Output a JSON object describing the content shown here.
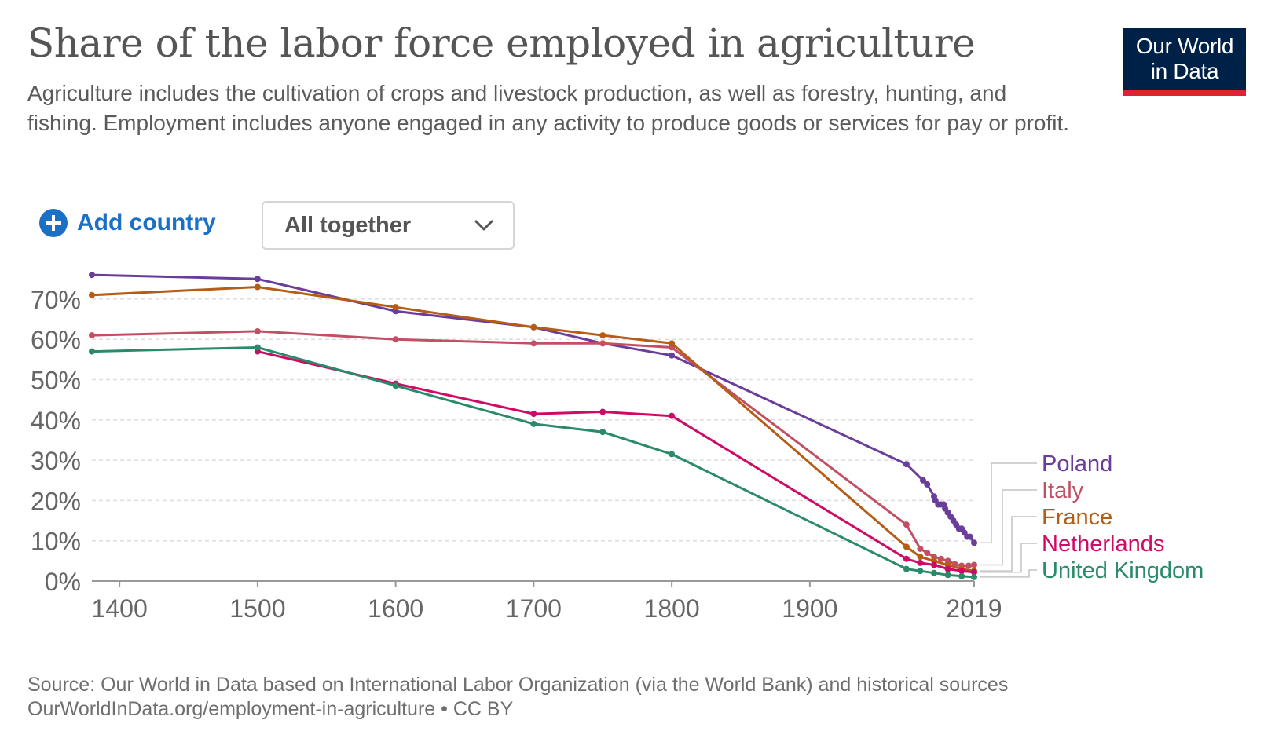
{
  "header": {
    "title": "Share of the labor force employed in agriculture",
    "subtitle": "Agriculture includes the cultivation of crops and livestock production, as well as forestry, hunting, and fishing. Employment includes anyone engaged in any activity to produce goods or services for pay or profit.",
    "logo_line1": "Our World",
    "logo_line2": "in Data"
  },
  "controls": {
    "add_country_label": "Add country",
    "add_icon": "plus-circle-icon",
    "view_select_value": "All together",
    "view_select_icon": "chevron-down-icon"
  },
  "footer": {
    "source": "Source: Our World in Data based on International Labor Organization (via the World Bank) and historical sources",
    "url_line": "OurWorldInData.org/employment-in-agriculture • CC BY"
  },
  "colors": {
    "accent": "#1a6fc7",
    "logo_bg": "#002147",
    "logo_bar": "#e0242f",
    "grid": "#dddddd"
  },
  "chart_data": {
    "type": "line",
    "title": "Share of the labor force employed in agriculture",
    "xlim": [
      1380,
      2019
    ],
    "ylim": [
      0,
      78
    ],
    "x_ticks": [
      {
        "value": 1400,
        "label": "1400"
      },
      {
        "value": 1500,
        "label": "1500"
      },
      {
        "value": 1600,
        "label": "1600"
      },
      {
        "value": 1700,
        "label": "1700"
      },
      {
        "value": 1800,
        "label": "1800"
      },
      {
        "value": 1900,
        "label": "1900"
      },
      {
        "value": 2019,
        "label": "2019"
      }
    ],
    "y_ticks": [
      {
        "value": 0,
        "label": "0%"
      },
      {
        "value": 10,
        "label": "10%"
      },
      {
        "value": 20,
        "label": "20%"
      },
      {
        "value": 30,
        "label": "30%"
      },
      {
        "value": 40,
        "label": "40%"
      },
      {
        "value": 50,
        "label": "50%"
      },
      {
        "value": 60,
        "label": "60%"
      },
      {
        "value": 70,
        "label": "70%"
      }
    ],
    "grid": true,
    "legend_position": "right",
    "series": [
      {
        "name": "Poland",
        "color": "#6b3d9a",
        "points": [
          [
            1380,
            76
          ],
          [
            1500,
            75
          ],
          [
            1600,
            67
          ],
          [
            1700,
            63
          ],
          [
            1750,
            59
          ],
          [
            1800,
            56
          ],
          [
            1970,
            29
          ],
          [
            1982,
            25
          ],
          [
            1985,
            24
          ],
          [
            1990,
            21
          ],
          [
            1991,
            20
          ],
          [
            1993,
            19
          ],
          [
            1995,
            19
          ],
          [
            1997,
            19
          ],
          [
            1998,
            18
          ],
          [
            2000,
            17
          ],
          [
            2002,
            16
          ],
          [
            2004,
            15
          ],
          [
            2006,
            14
          ],
          [
            2008,
            13
          ],
          [
            2010,
            13
          ],
          [
            2012,
            12
          ],
          [
            2014,
            11
          ],
          [
            2016,
            11
          ],
          [
            2019,
            9.5
          ]
        ]
      },
      {
        "name": "Italy",
        "color": "#c15065",
        "points": [
          [
            1380,
            61
          ],
          [
            1500,
            62
          ],
          [
            1600,
            60
          ],
          [
            1700,
            59
          ],
          [
            1750,
            59
          ],
          [
            1800,
            58
          ],
          [
            1970,
            14
          ],
          [
            1980,
            8
          ],
          [
            1985,
            7
          ],
          [
            1990,
            6
          ],
          [
            1995,
            5.5
          ],
          [
            2000,
            5
          ],
          [
            2005,
            4.2
          ],
          [
            2010,
            3.8
          ],
          [
            2015,
            3.8
          ],
          [
            2019,
            4
          ]
        ]
      },
      {
        "name": "France",
        "color": "#b65c15",
        "points": [
          [
            1380,
            71
          ],
          [
            1500,
            73
          ],
          [
            1600,
            68
          ],
          [
            1700,
            63
          ],
          [
            1750,
            61
          ],
          [
            1800,
            59
          ],
          [
            1970,
            8.5
          ],
          [
            1980,
            6
          ],
          [
            1990,
            5
          ],
          [
            2000,
            4
          ],
          [
            2010,
            3
          ],
          [
            2019,
            2.5
          ]
        ]
      },
      {
        "name": "Netherlands",
        "color": "#cf0a66",
        "points": [
          [
            1500,
            57
          ],
          [
            1600,
            49
          ],
          [
            1700,
            41.5
          ],
          [
            1750,
            42
          ],
          [
            1800,
            41
          ],
          [
            1970,
            5.5
          ],
          [
            1980,
            4.5
          ],
          [
            1990,
            4
          ],
          [
            2000,
            3
          ],
          [
            2010,
            2.5
          ],
          [
            2019,
            2.2
          ]
        ]
      },
      {
        "name": "United Kingdom",
        "color": "#2a8a6a",
        "points": [
          [
            1380,
            57
          ],
          [
            1500,
            58
          ],
          [
            1600,
            48.5
          ],
          [
            1700,
            39
          ],
          [
            1750,
            37
          ],
          [
            1800,
            31.5
          ],
          [
            1970,
            3
          ],
          [
            1980,
            2.5
          ],
          [
            1990,
            2
          ],
          [
            2000,
            1.5
          ],
          [
            2010,
            1.2
          ],
          [
            2019,
            1
          ]
        ]
      }
    ]
  }
}
